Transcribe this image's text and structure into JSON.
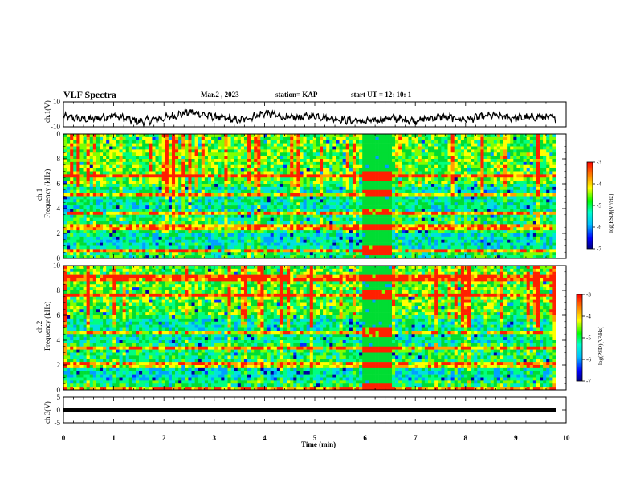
{
  "header": {
    "title": "VLF Spectra",
    "date": "Mar.2 , 2023",
    "station": "station= KAP",
    "start": "start UT = 12: 10: 1"
  },
  "chart_data": [
    {
      "type": "line",
      "panel": "ch1-waveform",
      "ylabel": "ch.1(V)",
      "ylim": [
        -10,
        10
      ],
      "y_ticks": [
        "10",
        "-10"
      ],
      "xlim": [
        0,
        10
      ],
      "sample_x": [
        0,
        0.5,
        1,
        1.5,
        2,
        2.5,
        3,
        3.5,
        4,
        4.5,
        5,
        5.5,
        6,
        6.5,
        7,
        7.5,
        8,
        8.5,
        9,
        9.5,
        9.8
      ],
      "sample_y": [
        -2,
        -4,
        -1,
        -6,
        -3,
        2,
        -2,
        -5,
        1,
        -3,
        -1,
        -4,
        -6,
        -3,
        -5,
        -2,
        -4,
        -1,
        -3,
        -2,
        -3
      ]
    },
    {
      "type": "heatmap",
      "panel": "ch1-spectrogram",
      "ylabel": "ch.1\nFrequency (kHz)",
      "ylabel_top": "ch.1",
      "ylabel_bottom": "Frequency (kHz)",
      "ylim": [
        0,
        10
      ],
      "y_ticks": [
        "0",
        "2",
        "4",
        "6",
        "8",
        "10"
      ],
      "xlim": [
        0,
        10
      ],
      "data_end_min": 9.8,
      "strong_bands_khz": [
        0.6,
        2.5,
        3.7,
        5.2,
        6.6
      ],
      "burst_interval_min": [
        5.95,
        6.55
      ]
    },
    {
      "type": "heatmap",
      "panel": "ch2-spectrogram",
      "ylabel_top": "ch.2",
      "ylabel_bottom": "Frequency (kHz)",
      "ylim": [
        0,
        10
      ],
      "y_ticks": [
        "0",
        "2",
        "4",
        "6",
        "8",
        "10"
      ],
      "xlim": [
        0,
        10
      ],
      "data_end_min": 9.8,
      "strong_bands_khz": [
        0.2,
        2.0,
        3.3,
        4.6,
        7.6,
        9.0
      ],
      "burst_interval_min": [
        5.95,
        6.55
      ]
    },
    {
      "type": "line",
      "panel": "ch3-waveform",
      "ylabel": "ch.3(V)",
      "ylim": [
        -5,
        5
      ],
      "y_ticks": [
        "5",
        "0",
        "-5"
      ],
      "xlim": [
        0,
        10
      ],
      "value": 0,
      "xlabel": "Time (min)",
      "x_ticks": [
        "0",
        "1",
        "2",
        "3",
        "4",
        "5",
        "6",
        "7",
        "8",
        "9",
        "10"
      ]
    }
  ],
  "colorbars": [
    {
      "label": "log(PSD)(V²/Hz)",
      "range": [
        -7,
        -3
      ],
      "ticks": [
        "-3",
        "-4",
        "-5",
        "-6",
        "-7"
      ]
    },
    {
      "label": "log(PSD)(V²/Hz)",
      "range": [
        -7,
        -3
      ],
      "ticks": [
        "-3",
        "-4",
        "-5",
        "-6",
        "-7"
      ]
    }
  ],
  "colors": {
    "background": "#00dd33",
    "low": "#0000b0",
    "high": "#ff1a00",
    "line": "#000000"
  }
}
